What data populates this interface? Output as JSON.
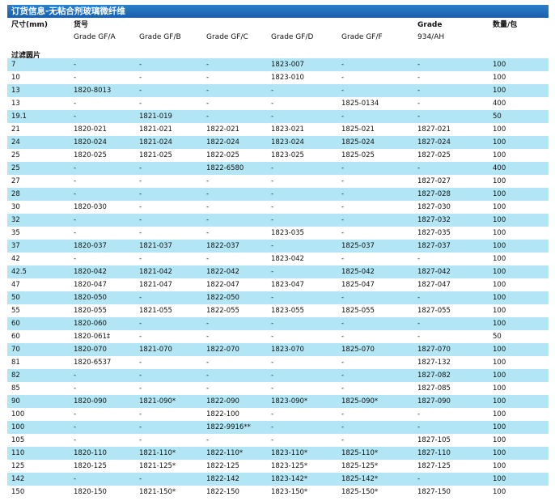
{
  "title": "订货信息-无粘合剂玻璃微纤维",
  "header": {
    "size": "尺寸(mm)",
    "part_no": "货号",
    "grade": "Grade",
    "qty": "数量/包",
    "gf_a": "Grade GF/A",
    "gf_b": "Grade GF/B",
    "gf_c": "Grade GF/C",
    "gf_d": "Grade GF/D",
    "gf_f": "Grade GF/F",
    "grade_934": "934/AH"
  },
  "section_label": "过滤圆片",
  "columns": [
    "size",
    "gf_a",
    "gf_b",
    "gf_c",
    "gf_d",
    "gf_f",
    "ah934",
    "qty"
  ],
  "rows": [
    {
      "size": "7",
      "gf_a": "-",
      "gf_b": "-",
      "gf_c": "-",
      "gf_d": "1823-007",
      "gf_f": "-",
      "ah934": "-",
      "qty": "100",
      "blue": true
    },
    {
      "size": "10",
      "gf_a": "-",
      "gf_b": "-",
      "gf_c": "-",
      "gf_d": "1823-010",
      "gf_f": "-",
      "ah934": "-",
      "qty": "100",
      "blue": false
    },
    {
      "size": "13",
      "gf_a": "1820-8013",
      "gf_b": "-",
      "gf_c": "-",
      "gf_d": "-",
      "gf_f": "-",
      "ah934": "-",
      "qty": "100",
      "blue": true
    },
    {
      "size": "13",
      "gf_a": "-",
      "gf_b": "-",
      "gf_c": "-",
      "gf_d": "-",
      "gf_f": "1825-0134",
      "ah934": "-",
      "qty": "400",
      "blue": false
    },
    {
      "size": "19.1",
      "gf_a": "-",
      "gf_b": "1821-019",
      "gf_c": "-",
      "gf_d": "-",
      "gf_f": "-",
      "ah934": "-",
      "qty": "50",
      "blue": true
    },
    {
      "size": "21",
      "gf_a": "1820-021",
      "gf_b": "1821-021",
      "gf_c": "1822-021",
      "gf_d": "1823-021",
      "gf_f": "1825-021",
      "ah934": "1827-021",
      "qty": "100",
      "blue": false
    },
    {
      "size": "24",
      "gf_a": "1820-024",
      "gf_b": "1821-024",
      "gf_c": "1822-024",
      "gf_d": "1823-024",
      "gf_f": "1825-024",
      "ah934": "1827-024",
      "qty": "100",
      "blue": true
    },
    {
      "size": "25",
      "gf_a": "1820-025",
      "gf_b": "1821-025",
      "gf_c": "1822-025",
      "gf_d": "1823-025",
      "gf_f": "1825-025",
      "ah934": "1827-025",
      "qty": "100",
      "blue": false
    },
    {
      "size": "25",
      "gf_a": "-",
      "gf_b": "-",
      "gf_c": "1822-6580",
      "gf_d": "-",
      "gf_f": "-",
      "ah934": "-",
      "qty": "400",
      "blue": true
    },
    {
      "size": "27",
      "gf_a": "-",
      "gf_b": "-",
      "gf_c": "-",
      "gf_d": "-",
      "gf_f": "-",
      "ah934": "1827-027",
      "qty": "100",
      "blue": false
    },
    {
      "size": "28",
      "gf_a": "-",
      "gf_b": "-",
      "gf_c": "-",
      "gf_d": "-",
      "gf_f": "-",
      "ah934": "1827-028",
      "qty": "100",
      "blue": true
    },
    {
      "size": "30",
      "gf_a": "1820-030",
      "gf_b": "-",
      "gf_c": "-",
      "gf_d": "-",
      "gf_f": "-",
      "ah934": "1827-030",
      "qty": "100",
      "blue": false
    },
    {
      "size": "32",
      "gf_a": "-",
      "gf_b": "-",
      "gf_c": "-",
      "gf_d": "-",
      "gf_f": "-",
      "ah934": "1827-032",
      "qty": "100",
      "blue": true
    },
    {
      "size": "35",
      "gf_a": "-",
      "gf_b": "-",
      "gf_c": "-",
      "gf_d": "1823-035",
      "gf_f": "-",
      "ah934": "1827-035",
      "qty": "100",
      "blue": false
    },
    {
      "size": "37",
      "gf_a": "1820-037",
      "gf_b": "1821-037",
      "gf_c": "1822-037",
      "gf_d": "-",
      "gf_f": "1825-037",
      "ah934": "1827-037",
      "qty": "100",
      "blue": true
    },
    {
      "size": "42",
      "gf_a": "-",
      "gf_b": "-",
      "gf_c": "-",
      "gf_d": "1823-042",
      "gf_f": "-",
      "ah934": "-",
      "qty": "100",
      "blue": false
    },
    {
      "size": "42.5",
      "gf_a": "1820-042",
      "gf_b": "1821-042",
      "gf_c": "1822-042",
      "gf_d": "-",
      "gf_f": "1825-042",
      "ah934": "1827-042",
      "qty": "100",
      "blue": true
    },
    {
      "size": "47",
      "gf_a": "1820-047",
      "gf_b": "1821-047",
      "gf_c": "1822-047",
      "gf_d": "1823-047",
      "gf_f": "1825-047",
      "ah934": "1827-047",
      "qty": "100",
      "blue": false
    },
    {
      "size": "50",
      "gf_a": "1820-050",
      "gf_b": "-",
      "gf_c": "1822-050",
      "gf_d": "-",
      "gf_f": "-",
      "ah934": "-",
      "qty": "100",
      "blue": true
    },
    {
      "size": "55",
      "gf_a": "1820-055",
      "gf_b": "1821-055",
      "gf_c": "1822-055",
      "gf_d": "1823-055",
      "gf_f": "1825-055",
      "ah934": "1827-055",
      "qty": "100",
      "blue": false
    },
    {
      "size": "60",
      "gf_a": "1820-060",
      "gf_b": "-",
      "gf_c": "-",
      "gf_d": "-",
      "gf_f": "-",
      "ah934": "-",
      "qty": "100",
      "blue": true
    },
    {
      "size": "60",
      "gf_a": "1820-061‡",
      "gf_b": "-",
      "gf_c": "-",
      "gf_d": "-",
      "gf_f": "-",
      "ah934": "-",
      "qty": "50",
      "blue": false
    },
    {
      "size": "70",
      "gf_a": "1820-070",
      "gf_b": "1821-070",
      "gf_c": "1822-070",
      "gf_d": "1823-070",
      "gf_f": "1825-070",
      "ah934": "1827-070",
      "qty": "100",
      "blue": true
    },
    {
      "size": "81",
      "gf_a": "1820-6537",
      "gf_b": "-",
      "gf_c": "-",
      "gf_d": "-",
      "gf_f": "-",
      "ah934": "1827-132",
      "qty": "100",
      "blue": false
    },
    {
      "size": "82",
      "gf_a": "-",
      "gf_b": "-",
      "gf_c": "-",
      "gf_d": "-",
      "gf_f": "-",
      "ah934": "1827-082",
      "qty": "100",
      "blue": true
    },
    {
      "size": "85",
      "gf_a": "-",
      "gf_b": "-",
      "gf_c": "-",
      "gf_d": "-",
      "gf_f": "-",
      "ah934": "1827-085",
      "qty": "100",
      "blue": false
    },
    {
      "size": "90",
      "gf_a": "1820-090",
      "gf_b": "1821-090*",
      "gf_c": "1822-090",
      "gf_d": "1823-090*",
      "gf_f": "1825-090*",
      "ah934": "1827-090",
      "qty": "100",
      "blue": true
    },
    {
      "size": "100",
      "gf_a": "-",
      "gf_b": "-",
      "gf_c": "1822-100",
      "gf_d": "-",
      "gf_f": "-",
      "ah934": "-",
      "qty": "100",
      "blue": false
    },
    {
      "size": "100",
      "gf_a": "-",
      "gf_b": "-",
      "gf_c": "1822-9916**",
      "gf_d": "-",
      "gf_f": "-",
      "ah934": "-",
      "qty": "100",
      "blue": true
    },
    {
      "size": "105",
      "gf_a": "-",
      "gf_b": "-",
      "gf_c": "-",
      "gf_d": "-",
      "gf_f": "-",
      "ah934": "1827-105",
      "qty": "100",
      "blue": false
    },
    {
      "size": "110",
      "gf_a": "1820-110",
      "gf_b": "1821-110*",
      "gf_c": "1822-110*",
      "gf_d": "1823-110*",
      "gf_f": "1825-110*",
      "ah934": "1827-110",
      "qty": "100",
      "blue": true
    },
    {
      "size": "125",
      "gf_a": "1820-125",
      "gf_b": "1821-125*",
      "gf_c": "1822-125",
      "gf_d": "1823-125*",
      "gf_f": "1825-125*",
      "ah934": "1827-125",
      "qty": "100",
      "blue": false
    },
    {
      "size": "142",
      "gf_a": "-",
      "gf_b": "-",
      "gf_c": "1822-142",
      "gf_d": "1823-142*",
      "gf_f": "1825-142*",
      "ah934": "-",
      "qty": "100",
      "blue": true
    },
    {
      "size": "150",
      "gf_a": "1820-150",
      "gf_b": "1821-150*",
      "gf_c": "1822-150",
      "gf_d": "1823-150*",
      "gf_f": "1825-150*",
      "ah934": "1827-150",
      "qty": "100",
      "blue": false
    }
  ]
}
